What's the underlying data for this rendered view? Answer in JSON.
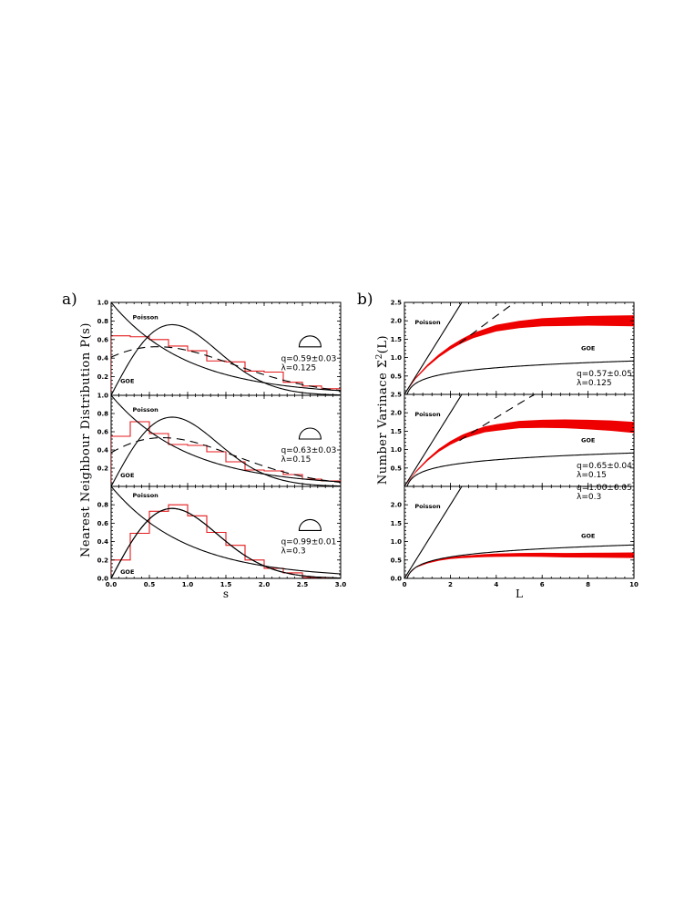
{
  "figure": {
    "panel_letters": [
      "a)",
      "b)"
    ],
    "left_ylabel": "Nearest  Neighbour  Distribution  P(s)",
    "right_ylabel_prefix": "Number  Varinace  Σ",
    "right_ylabel_sup": "2",
    "right_ylabel_suffix": "(L)"
  },
  "chart_data": [
    {
      "id": "a-top",
      "type": "line",
      "xlabel": "",
      "ylabel": "Nearest  Neighbour  Distribution  P(s)",
      "xlim": [
        0,
        3
      ],
      "ylim": [
        0,
        1.0
      ],
      "xticks": [
        0.0,
        0.5,
        1.0,
        1.5,
        2.0,
        2.5,
        3.0
      ],
      "yticks": [
        0.0,
        0.2,
        0.4,
        0.6,
        0.8,
        1.0
      ],
      "ytick_labels": [
        "",
        "0.2",
        "0.4",
        "0.6",
        "0.8",
        "1.0"
      ],
      "curve_labels": [
        {
          "text": "Poisson",
          "x": 0.28,
          "y": 0.82
        },
        {
          "text": "GOE",
          "x": 0.12,
          "y": 0.13
        }
      ],
      "annotation": [
        "q=0.59±0.03",
        "λ=0.125"
      ],
      "annotation_at": [
        2.22,
        0.37
      ],
      "icon": "semicircle-icon",
      "icon_at": [
        2.6,
        0.6
      ],
      "q": 0.59,
      "histogram": {
        "bin_width": 0.25,
        "values": [
          0.64,
          0.63,
          0.6,
          0.53,
          0.48,
          0.37,
          0.36,
          0.26,
          0.25,
          0.14,
          0.1,
          0.07
        ]
      }
    },
    {
      "id": "a-mid",
      "type": "line",
      "xlabel": "",
      "ylabel": "",
      "xlim": [
        0,
        3
      ],
      "ylim": [
        0,
        1.0
      ],
      "xticks": [
        0.0,
        0.5,
        1.0,
        1.5,
        2.0,
        2.5,
        3.0
      ],
      "yticks": [
        0.0,
        0.2,
        0.4,
        0.6,
        0.8,
        1.0
      ],
      "ytick_labels": [
        "",
        "0.2",
        "0.4",
        "0.6",
        "0.8",
        "1.0"
      ],
      "curve_labels": [
        {
          "text": "Poisson",
          "x": 0.28,
          "y": 0.82
        },
        {
          "text": "GOE",
          "x": 0.12,
          "y": 0.1
        }
      ],
      "annotation": [
        "q=0.63±0.03",
        "λ=0.15"
      ],
      "annotation_at": [
        2.22,
        0.37
      ],
      "icon": "semicircle-icon",
      "icon_at": [
        2.6,
        0.6
      ],
      "q": 0.63,
      "histogram": {
        "bin_width": 0.25,
        "values": [
          0.55,
          0.71,
          0.58,
          0.46,
          0.45,
          0.38,
          0.27,
          0.18,
          0.17,
          0.13,
          0.08,
          0.06
        ]
      }
    },
    {
      "id": "a-bot",
      "type": "line",
      "xlabel": "s",
      "ylabel": "",
      "xlim": [
        0,
        3
      ],
      "ylim": [
        0,
        1.0
      ],
      "xticks": [
        0.0,
        0.5,
        1.0,
        1.5,
        2.0,
        2.5,
        3.0
      ],
      "xtick_labels": [
        "0.0",
        "0.5",
        "1.0",
        "1.5",
        "2.0",
        "2.5",
        "3.0"
      ],
      "yticks": [
        0.0,
        0.2,
        0.4,
        0.6,
        0.8,
        1.0
      ],
      "ytick_labels": [
        "0.0",
        "0.2",
        "0.4",
        "0.6",
        "0.8",
        ""
      ],
      "curve_labels": [
        {
          "text": "Poisson",
          "x": 0.28,
          "y": 0.88
        },
        {
          "text": "GOE",
          "x": 0.12,
          "y": 0.05
        }
      ],
      "annotation": [
        "q=0.99±0.01",
        "λ=0.3"
      ],
      "annotation_at": [
        2.22,
        0.37
      ],
      "icon": "semicircle-icon",
      "icon_at": [
        2.6,
        0.6
      ],
      "q": 0.99,
      "histogram": {
        "bin_width": 0.25,
        "values": [
          0.2,
          0.49,
          0.73,
          0.8,
          0.68,
          0.5,
          0.36,
          0.2,
          0.11,
          0.06,
          0.01,
          0.0
        ]
      }
    },
    {
      "id": "b-top",
      "type": "line",
      "xlabel": "",
      "ylabel": "Number  Varinace  Σ2(L)",
      "xlim": [
        0,
        10
      ],
      "ylim": [
        0,
        2.5
      ],
      "xticks": [
        0,
        2,
        4,
        6,
        8,
        10
      ],
      "yticks": [
        0.0,
        0.5,
        1.0,
        1.5,
        2.0,
        2.5
      ],
      "ytick_labels": [
        "",
        "0.5",
        "1.0",
        "1.5",
        "2.0",
        "2.5"
      ],
      "curve_labels": [
        {
          "text": "Poisson",
          "x": 0.45,
          "y": 1.9
        },
        {
          "text": "GOE",
          "x": 7.7,
          "y": 1.2
        }
      ],
      "annotation": [
        "q=0.57±0.05",
        "λ=0.125"
      ],
      "annotation_at": [
        7.5,
        0.5
      ],
      "q": 0.57,
      "data_band": {
        "x": [
          0,
          0.5,
          1,
          1.5,
          2,
          2.5,
          3,
          3.5,
          4,
          5,
          6,
          7,
          8,
          9,
          10
        ],
        "y": [
          0,
          0.45,
          0.78,
          1.05,
          1.27,
          1.45,
          1.6,
          1.7,
          1.8,
          1.9,
          1.96,
          1.98,
          2.0,
          2.0,
          2.0
        ],
        "halfwidth": [
          0,
          0.02,
          0.03,
          0.04,
          0.05,
          0.06,
          0.07,
          0.08,
          0.09,
          0.1,
          0.11,
          0.12,
          0.13,
          0.14,
          0.15
        ]
      },
      "dashed_from": 2.4
    },
    {
      "id": "b-mid",
      "type": "line",
      "xlabel": "",
      "ylabel": "",
      "xlim": [
        0,
        10
      ],
      "ylim": [
        0,
        2.5
      ],
      "xticks": [
        0,
        2,
        4,
        6,
        8,
        10
      ],
      "yticks": [
        0.0,
        0.5,
        1.0,
        1.5,
        2.0,
        2.5
      ],
      "ytick_labels": [
        "",
        "0.5",
        "1.0",
        "1.5",
        "2.0",
        "2.5"
      ],
      "curve_labels": [
        {
          "text": "Poisson",
          "x": 0.45,
          "y": 1.9
        },
        {
          "text": "GOE",
          "x": 7.7,
          "y": 1.2
        }
      ],
      "annotation": [
        "q=0.65±0.04",
        "λ=0.15"
      ],
      "annotation_at": [
        7.5,
        0.5
      ],
      "q": 0.65,
      "data_band": {
        "x": [
          0,
          0.5,
          1,
          1.5,
          2,
          2.5,
          3,
          3.5,
          4,
          5,
          6,
          7,
          8,
          9,
          10
        ],
        "y": [
          0,
          0.4,
          0.72,
          0.98,
          1.18,
          1.34,
          1.45,
          1.55,
          1.6,
          1.68,
          1.7,
          1.7,
          1.68,
          1.65,
          1.6
        ],
        "halfwidth": [
          0,
          0.02,
          0.03,
          0.04,
          0.05,
          0.06,
          0.07,
          0.08,
          0.09,
          0.1,
          0.11,
          0.12,
          0.13,
          0.14,
          0.15
        ]
      },
      "dashed_from": 2.4
    },
    {
      "id": "b-bot",
      "type": "line",
      "xlabel": "L",
      "ylabel": "",
      "xlim": [
        0,
        10
      ],
      "ylim": [
        0,
        2.5
      ],
      "xticks": [
        0,
        2,
        4,
        6,
        8,
        10
      ],
      "xtick_labels": [
        "0",
        "2",
        "4",
        "6",
        "8",
        "10"
      ],
      "yticks": [
        0.0,
        0.5,
        1.0,
        1.5,
        2.0,
        2.5
      ],
      "ytick_labels": [
        "0.0",
        "0.5",
        "1.0",
        "1.5",
        "2.0",
        ""
      ],
      "curve_labels": [
        {
          "text": "Poisson",
          "x": 0.45,
          "y": 1.9
        },
        {
          "text": "GOE",
          "x": 7.7,
          "y": 1.1
        }
      ],
      "annotation": [
        "q=1.00±0.05",
        "λ=0.3"
      ],
      "annotation_at": [
        7.5,
        2.4
      ],
      "q": 1.0,
      "data_band": {
        "x": [
          0,
          0.5,
          1,
          1.5,
          2,
          2.5,
          3,
          3.5,
          4,
          5,
          6,
          7,
          8,
          9,
          10
        ],
        "y": [
          0,
          0.3,
          0.42,
          0.5,
          0.55,
          0.58,
          0.6,
          0.62,
          0.63,
          0.64,
          0.64,
          0.63,
          0.63,
          0.63,
          0.63
        ],
        "halfwidth": [
          0,
          0.01,
          0.015,
          0.02,
          0.025,
          0.03,
          0.035,
          0.04,
          0.045,
          0.05,
          0.055,
          0.06,
          0.065,
          0.07,
          0.075
        ]
      },
      "dashed_from": null
    }
  ]
}
